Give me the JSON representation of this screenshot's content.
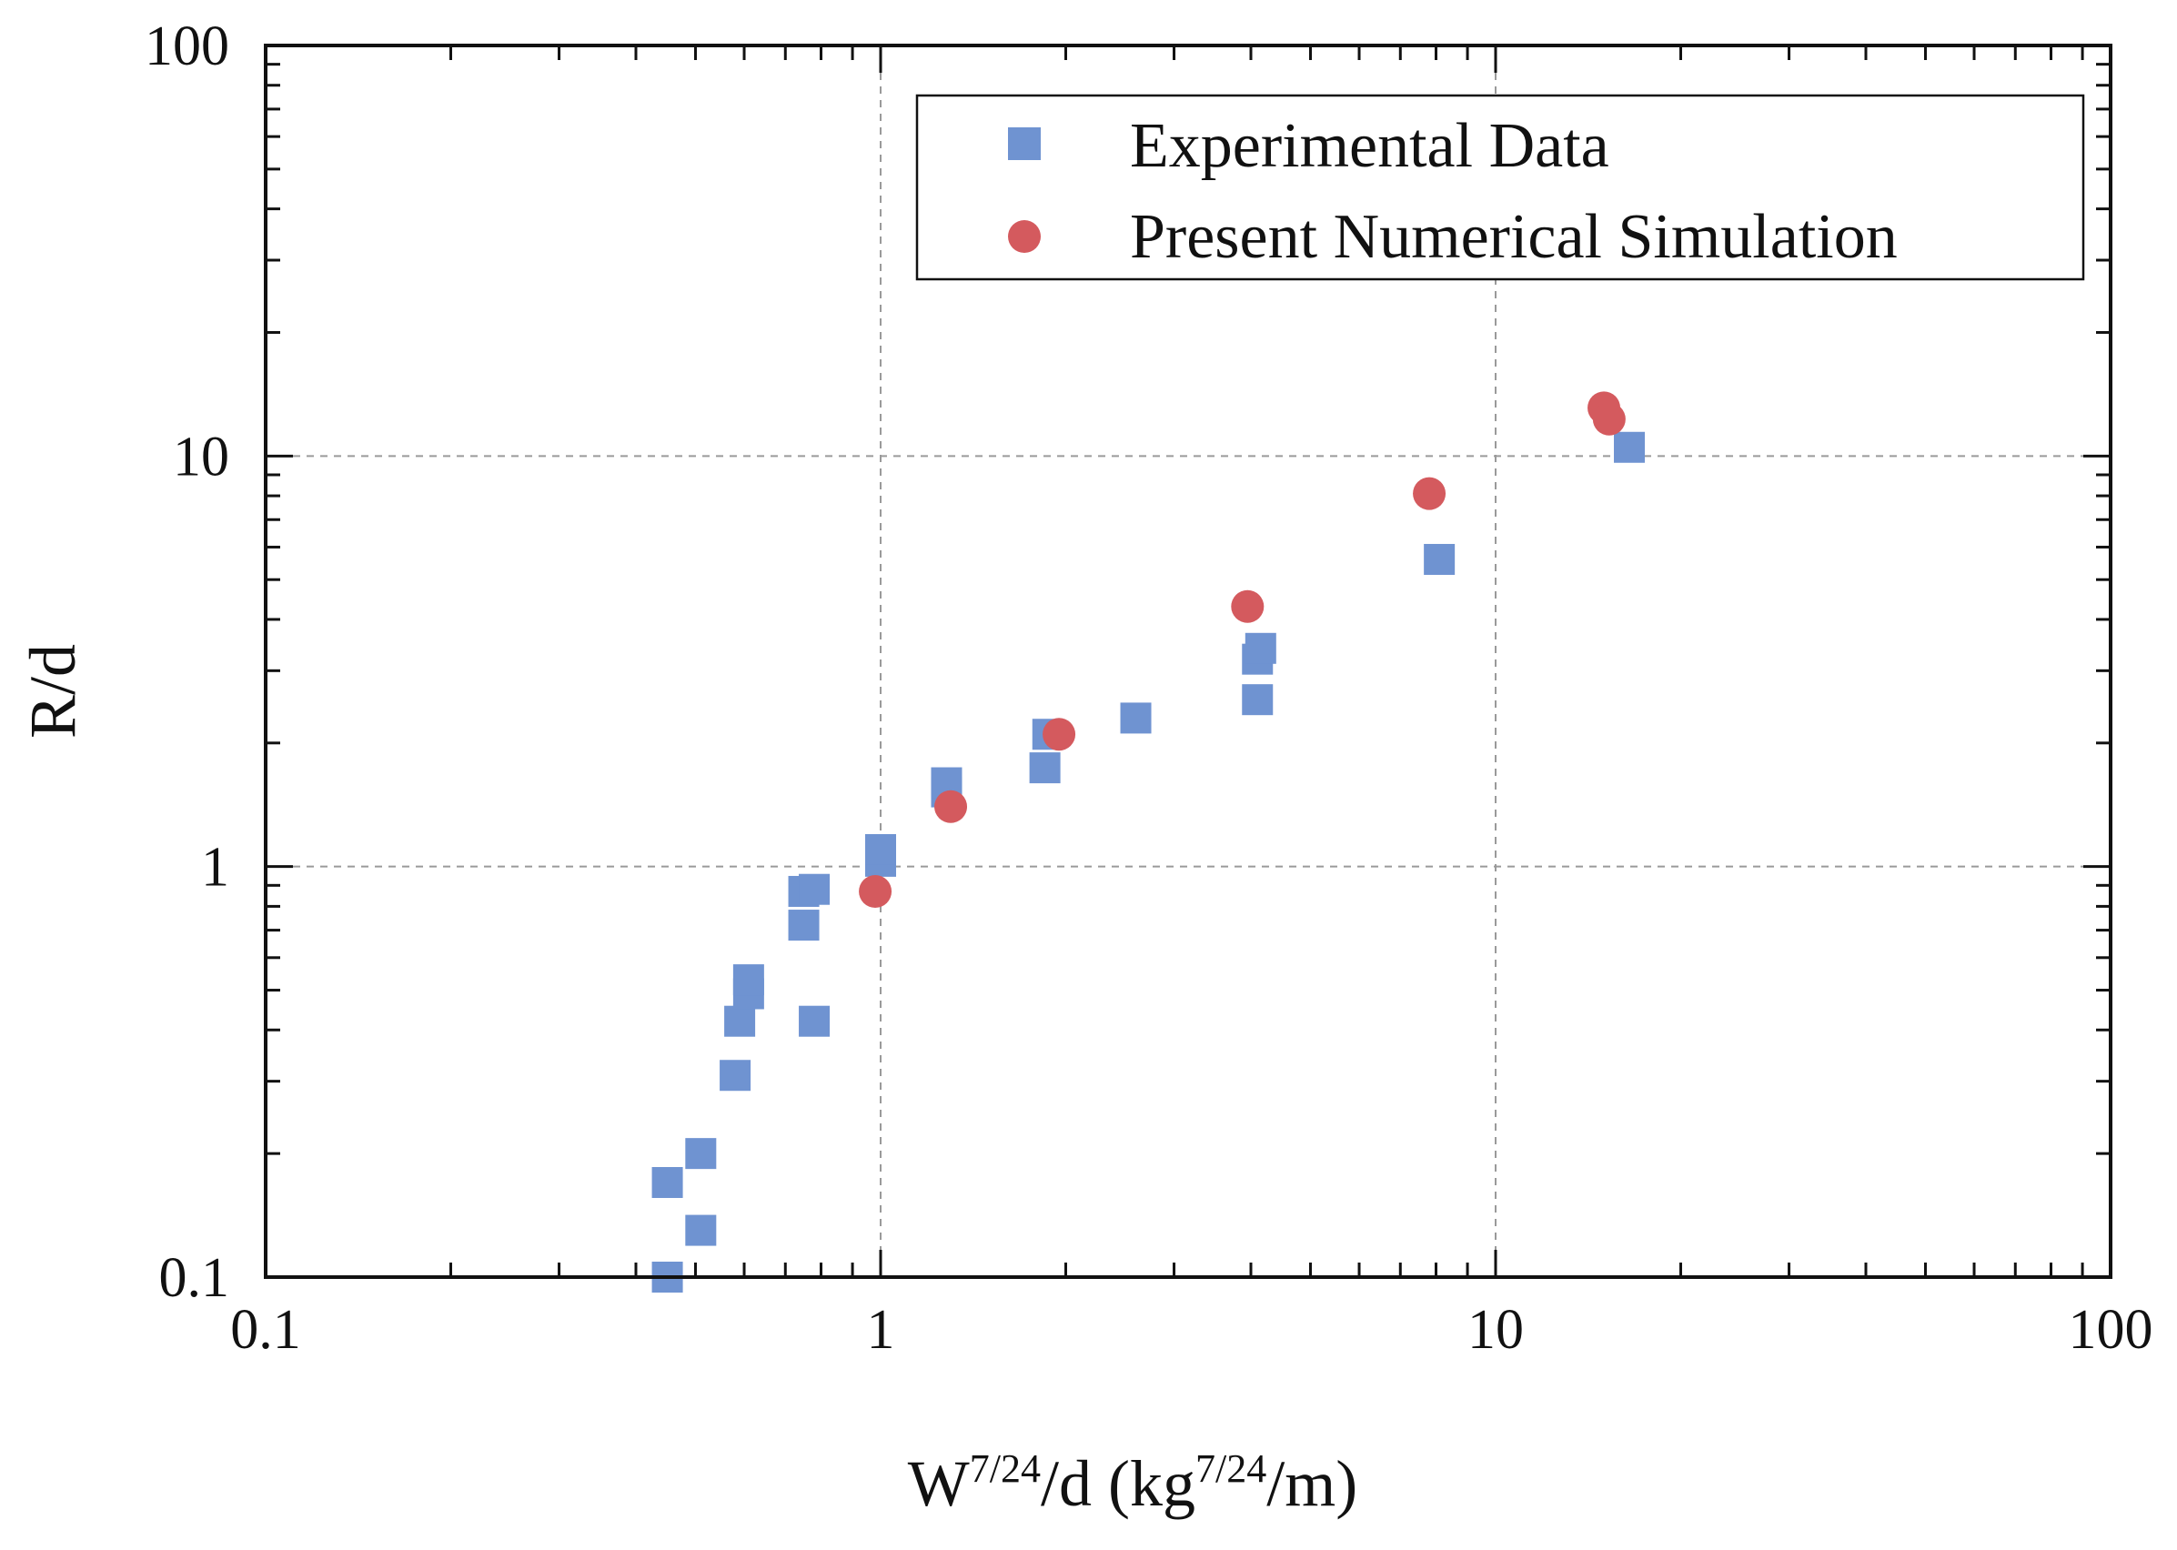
{
  "chart_data": {
    "type": "scatter",
    "title": "",
    "xlabel": {
      "parts": [
        {
          "text": "W",
          "sup": false
        },
        {
          "text": "7/24",
          "sup": true
        },
        {
          "text": "/d (kg",
          "sup": false
        },
        {
          "text": "7/24",
          "sup": true
        },
        {
          "text": "/m)",
          "sup": false
        }
      ]
    },
    "ylabel": "R/d",
    "xscale": "log",
    "yscale": "log",
    "xlim": [
      0.1,
      100
    ],
    "ylim": [
      0.1,
      100
    ],
    "xticks": [
      {
        "value": 0.1,
        "label": "0.1"
      },
      {
        "value": 1,
        "label": "1"
      },
      {
        "value": 10,
        "label": "10"
      },
      {
        "value": 100,
        "label": "100"
      }
    ],
    "yticks": [
      {
        "value": 0.1,
        "label": "0.1"
      },
      {
        "value": 1,
        "label": "1"
      },
      {
        "value": 10,
        "label": "10"
      },
      {
        "value": 100,
        "label": "100"
      }
    ],
    "grid": true,
    "legend_position": "top-right",
    "series": [
      {
        "name": "Experimental Data",
        "marker": "square",
        "color": "#6f93d1",
        "points": [
          [
            0.45,
            0.1
          ],
          [
            0.45,
            0.17
          ],
          [
            0.51,
            0.13
          ],
          [
            0.51,
            0.2
          ],
          [
            0.58,
            0.31
          ],
          [
            0.59,
            0.42
          ],
          [
            0.61,
            0.49
          ],
          [
            0.61,
            0.53
          ],
          [
            0.75,
            0.72
          ],
          [
            0.75,
            0.87
          ],
          [
            0.78,
            0.88
          ],
          [
            0.78,
            0.42
          ],
          [
            1.0,
            1.03
          ],
          [
            1.0,
            1.1
          ],
          [
            1.28,
            1.52
          ],
          [
            1.28,
            1.6
          ],
          [
            1.85,
            1.74
          ],
          [
            1.87,
            2.1
          ],
          [
            2.6,
            2.3
          ],
          [
            4.1,
            2.55
          ],
          [
            4.1,
            3.2
          ],
          [
            4.15,
            3.4
          ],
          [
            8.1,
            5.6
          ],
          [
            16.5,
            10.5
          ]
        ]
      },
      {
        "name": "Present Numerical Simulation",
        "marker": "circle",
        "color": "#d45a5e",
        "points": [
          [
            0.98,
            0.87
          ],
          [
            1.3,
            1.4
          ],
          [
            1.95,
            2.1
          ],
          [
            3.95,
            4.3
          ],
          [
            7.8,
            8.1
          ],
          [
            15.0,
            13.1
          ],
          [
            15.3,
            12.3
          ]
        ]
      }
    ]
  }
}
